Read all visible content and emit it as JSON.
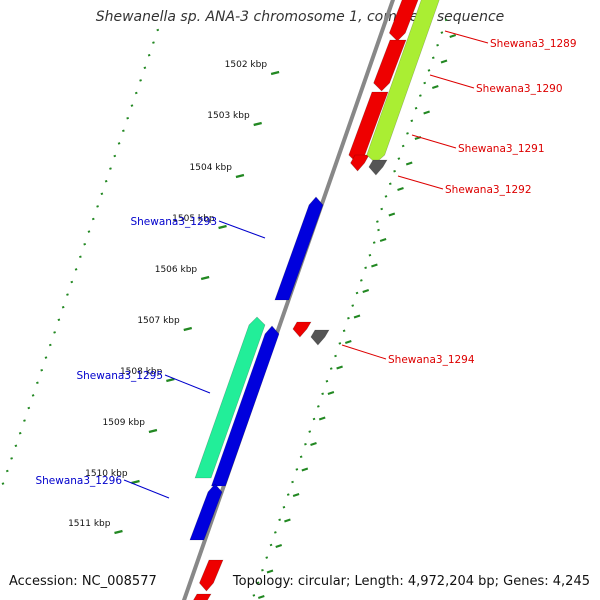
{
  "title": "Shewanella sp. ANA-3 chromosome 1, complete sequence",
  "accession": "Accession: NC_008577",
  "summary": "Topology: circular; Length: 4,972,204 bp; Genes: 4,245",
  "scale": {
    "unit": "kbp",
    "ticks": [
      "1502 kbp",
      "1503 kbp",
      "1504 kbp",
      "1505 kbp",
      "1506 kbp",
      "1507 kbp",
      "1508 kbp",
      "1509 kbp",
      "1510 kbp",
      "1511 kbp"
    ]
  },
  "colors": {
    "forward_gene": "#ee0000",
    "forward_cds_label": "#dd0000",
    "reverse_gene": "#0000dd",
    "reverse_cds_label": "#0000cc",
    "forward_feature": "#aaee33",
    "reverse_feature": "#22ee99",
    "pseudo_gene": "#555555",
    "backbone": "#888888",
    "tick_green": "#228822"
  },
  "genes_forward": [
    {
      "name": "Shewana3_1289",
      "strand": "+"
    },
    {
      "name": "Shewana3_1290",
      "strand": "+"
    },
    {
      "name": "Shewana3_1291",
      "strand": "+"
    },
    {
      "name": "Shewana3_1292",
      "strand": "+"
    },
    {
      "name": "Shewana3_1294",
      "strand": "+"
    }
  ],
  "genes_reverse": [
    {
      "name": "Shewana3_1293",
      "strand": "-"
    },
    {
      "name": "Shewana3_1295",
      "strand": "-"
    },
    {
      "name": "Shewana3_1296",
      "strand": "-"
    }
  ]
}
